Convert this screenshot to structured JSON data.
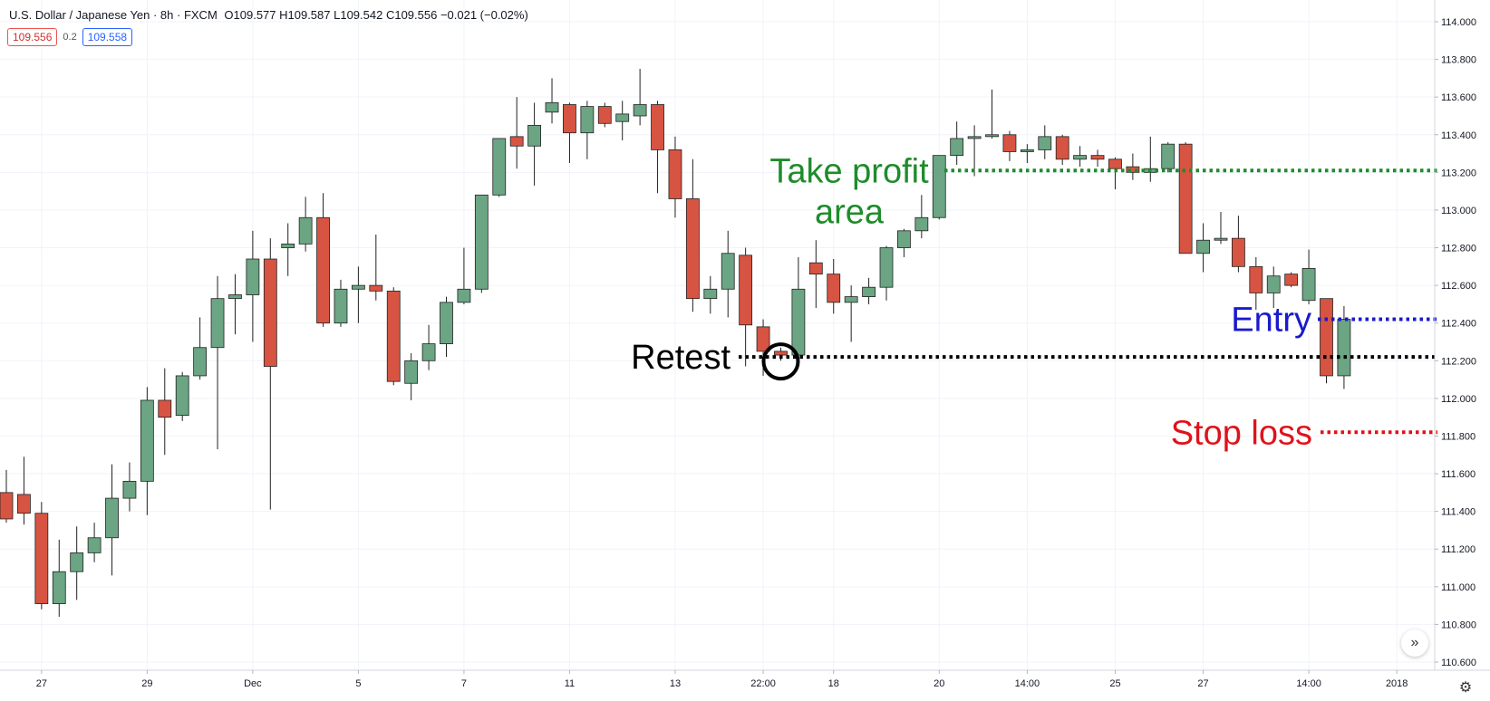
{
  "header": {
    "symbol": "U.S. Dollar / Japanese Yen · 8h · FXCM",
    "ohlc": "O109.577 H109.587 L109.542 C109.556 −0.021 (−0.02%)"
  },
  "quotes": {
    "sell": "109.556",
    "spread": "0.2",
    "buy": "109.558"
  },
  "icons": {
    "jump": "double-chevron-right-icon",
    "settings": "gear-icon"
  },
  "colors": {
    "up": "#6ba583",
    "down": "#d75442",
    "take_profit": "#1e8c2a",
    "entry": "#1a1acc",
    "stop": "#e0121b",
    "retest": "#000000"
  },
  "chart_data": {
    "type": "candlestick",
    "y_axis": {
      "min": 110.6,
      "max": 114.0,
      "ticks": [
        "114.000",
        "113.800",
        "113.600",
        "113.400",
        "113.200",
        "113.000",
        "112.800",
        "112.600",
        "112.400",
        "112.200",
        "112.000",
        "111.800",
        "111.600",
        "111.400",
        "111.200",
        "111.000",
        "110.800",
        "110.600"
      ]
    },
    "x_ticks": [
      {
        "label": "27",
        "bar": 2
      },
      {
        "label": "29",
        "bar": 8
      },
      {
        "label": "Dec",
        "bar": 14
      },
      {
        "label": "5",
        "bar": 20
      },
      {
        "label": "7",
        "bar": 26
      },
      {
        "label": "11",
        "bar": 32
      },
      {
        "label": "13",
        "bar": 38
      },
      {
        "label": "22:00",
        "bar": 43
      },
      {
        "label": "18",
        "bar": 47
      },
      {
        "label": "20",
        "bar": 53
      },
      {
        "label": "14:00",
        "bar": 58
      },
      {
        "label": "25",
        "bar": 63
      },
      {
        "label": "27",
        "bar": 68
      },
      {
        "label": "14:00",
        "bar": 74
      },
      {
        "label": "2018",
        "bar": 79
      }
    ],
    "candles": [
      {
        "o": 111.5,
        "h": 111.62,
        "l": 111.34,
        "c": 111.36
      },
      {
        "o": 111.49,
        "h": 111.69,
        "l": 111.33,
        "c": 111.39
      },
      {
        "o": 111.39,
        "h": 111.45,
        "l": 110.88,
        "c": 110.91
      },
      {
        "o": 110.91,
        "h": 111.25,
        "l": 110.84,
        "c": 111.08
      },
      {
        "o": 111.08,
        "h": 111.32,
        "l": 110.93,
        "c": 111.18
      },
      {
        "o": 111.18,
        "h": 111.34,
        "l": 111.13,
        "c": 111.26
      },
      {
        "o": 111.26,
        "h": 111.65,
        "l": 111.06,
        "c": 111.47
      },
      {
        "o": 111.47,
        "h": 111.66,
        "l": 111.4,
        "c": 111.56
      },
      {
        "o": 111.56,
        "h": 112.06,
        "l": 111.38,
        "c": 111.99
      },
      {
        "o": 111.99,
        "h": 112.16,
        "l": 111.7,
        "c": 111.9
      },
      {
        "o": 111.91,
        "h": 112.14,
        "l": 111.88,
        "c": 112.12
      },
      {
        "o": 112.12,
        "h": 112.43,
        "l": 112.1,
        "c": 112.27
      },
      {
        "o": 112.27,
        "h": 112.65,
        "l": 111.73,
        "c": 112.53
      },
      {
        "o": 112.53,
        "h": 112.66,
        "l": 112.34,
        "c": 112.55
      },
      {
        "o": 112.55,
        "h": 112.89,
        "l": 112.3,
        "c": 112.74
      },
      {
        "o": 112.74,
        "h": 112.85,
        "l": 111.41,
        "c": 112.17
      },
      {
        "o": 112.8,
        "h": 112.93,
        "l": 112.65,
        "c": 112.82
      },
      {
        "o": 112.82,
        "h": 113.07,
        "l": 112.78,
        "c": 112.96
      },
      {
        "o": 112.96,
        "h": 113.09,
        "l": 112.38,
        "c": 112.4
      },
      {
        "o": 112.4,
        "h": 112.63,
        "l": 112.38,
        "c": 112.58
      },
      {
        "o": 112.58,
        "h": 112.7,
        "l": 112.4,
        "c": 112.6
      },
      {
        "o": 112.6,
        "h": 112.87,
        "l": 112.52,
        "c": 112.57
      },
      {
        "o": 112.57,
        "h": 112.59,
        "l": 112.07,
        "c": 112.09
      },
      {
        "o": 112.08,
        "h": 112.24,
        "l": 111.99,
        "c": 112.2
      },
      {
        "o": 112.2,
        "h": 112.39,
        "l": 112.15,
        "c": 112.29
      },
      {
        "o": 112.29,
        "h": 112.54,
        "l": 112.22,
        "c": 112.51
      },
      {
        "o": 112.51,
        "h": 112.8,
        "l": 112.5,
        "c": 112.58
      },
      {
        "o": 112.58,
        "h": 113.08,
        "l": 112.56,
        "c": 113.08
      },
      {
        "o": 113.08,
        "h": 113.38,
        "l": 113.07,
        "c": 113.38
      },
      {
        "o": 113.39,
        "h": 113.6,
        "l": 113.22,
        "c": 113.34
      },
      {
        "o": 113.34,
        "h": 113.57,
        "l": 113.13,
        "c": 113.45
      },
      {
        "o": 113.52,
        "h": 113.7,
        "l": 113.46,
        "c": 113.57
      },
      {
        "o": 113.56,
        "h": 113.57,
        "l": 113.25,
        "c": 113.41
      },
      {
        "o": 113.41,
        "h": 113.58,
        "l": 113.27,
        "c": 113.55
      },
      {
        "o": 113.55,
        "h": 113.57,
        "l": 113.44,
        "c": 113.46
      },
      {
        "o": 113.47,
        "h": 113.58,
        "l": 113.37,
        "c": 113.51
      },
      {
        "o": 113.5,
        "h": 113.75,
        "l": 113.45,
        "c": 113.56
      },
      {
        "o": 113.56,
        "h": 113.58,
        "l": 113.09,
        "c": 113.32
      },
      {
        "o": 113.32,
        "h": 113.39,
        "l": 112.96,
        "c": 113.06
      },
      {
        "o": 113.06,
        "h": 113.27,
        "l": 112.46,
        "c": 112.53
      },
      {
        "o": 112.53,
        "h": 112.65,
        "l": 112.45,
        "c": 112.58
      },
      {
        "o": 112.58,
        "h": 112.89,
        "l": 112.43,
        "c": 112.77
      },
      {
        "o": 112.76,
        "h": 112.8,
        "l": 112.17,
        "c": 112.39
      },
      {
        "o": 112.38,
        "h": 112.42,
        "l": 112.12,
        "c": 112.25
      },
      {
        "o": 112.25,
        "h": 112.27,
        "l": 112.2,
        "c": 112.23
      },
      {
        "o": 112.23,
        "h": 112.75,
        "l": 112.2,
        "c": 112.58
      },
      {
        "o": 112.72,
        "h": 112.84,
        "l": 112.48,
        "c": 112.66
      },
      {
        "o": 112.66,
        "h": 112.74,
        "l": 112.45,
        "c": 112.51
      },
      {
        "o": 112.51,
        "h": 112.6,
        "l": 112.3,
        "c": 112.54
      },
      {
        "o": 112.54,
        "h": 112.64,
        "l": 112.5,
        "c": 112.59
      },
      {
        "o": 112.59,
        "h": 112.81,
        "l": 112.52,
        "c": 112.8
      },
      {
        "o": 112.8,
        "h": 112.9,
        "l": 112.75,
        "c": 112.89
      },
      {
        "o": 112.89,
        "h": 113.08,
        "l": 112.85,
        "c": 112.96
      },
      {
        "o": 112.96,
        "h": 113.26,
        "l": 112.95,
        "c": 113.29
      },
      {
        "o": 113.29,
        "h": 113.47,
        "l": 113.24,
        "c": 113.38
      },
      {
        "o": 113.38,
        "h": 113.45,
        "l": 113.18,
        "c": 113.39
      },
      {
        "o": 113.39,
        "h": 113.64,
        "l": 113.38,
        "c": 113.4
      },
      {
        "o": 113.4,
        "h": 113.42,
        "l": 113.26,
        "c": 113.31
      },
      {
        "o": 113.31,
        "h": 113.35,
        "l": 113.25,
        "c": 113.32
      },
      {
        "o": 113.32,
        "h": 113.45,
        "l": 113.27,
        "c": 113.39
      },
      {
        "o": 113.39,
        "h": 113.4,
        "l": 113.24,
        "c": 113.27
      },
      {
        "o": 113.27,
        "h": 113.34,
        "l": 113.23,
        "c": 113.29
      },
      {
        "o": 113.29,
        "h": 113.32,
        "l": 113.23,
        "c": 113.27
      },
      {
        "o": 113.27,
        "h": 113.28,
        "l": 113.11,
        "c": 113.22
      },
      {
        "o": 113.23,
        "h": 113.3,
        "l": 113.16,
        "c": 113.2
      },
      {
        "o": 113.2,
        "h": 113.39,
        "l": 113.15,
        "c": 113.22
      },
      {
        "o": 113.22,
        "h": 113.36,
        "l": 113.2,
        "c": 113.35
      },
      {
        "o": 113.35,
        "h": 113.36,
        "l": 112.77,
        "c": 112.77
      },
      {
        "o": 112.77,
        "h": 112.93,
        "l": 112.67,
        "c": 112.84
      },
      {
        "o": 112.84,
        "h": 112.99,
        "l": 112.82,
        "c": 112.85
      },
      {
        "o": 112.85,
        "h": 112.97,
        "l": 112.67,
        "c": 112.7
      },
      {
        "o": 112.7,
        "h": 112.75,
        "l": 112.47,
        "c": 112.56
      },
      {
        "o": 112.56,
        "h": 112.7,
        "l": 112.48,
        "c": 112.65
      },
      {
        "o": 112.66,
        "h": 112.67,
        "l": 112.59,
        "c": 112.6
      },
      {
        "o": 112.52,
        "h": 112.79,
        "l": 112.5,
        "c": 112.69
      },
      {
        "o": 112.53,
        "h": 112.53,
        "l": 112.08,
        "c": 112.12
      },
      {
        "o": 112.12,
        "h": 112.49,
        "l": 112.05,
        "c": 112.42
      }
    ],
    "annotations": [
      {
        "label": "Take profit",
        "label2": "area",
        "level": 113.21,
        "color": "#1e8c2a"
      },
      {
        "label": "Entry",
        "level": 112.42,
        "color": "#1a1acc"
      },
      {
        "label": "Stop loss",
        "level": 111.82,
        "color": "#e0121b"
      },
      {
        "label": "Retest",
        "level": 112.22,
        "color": "#000000",
        "circle_bar": 44
      }
    ]
  }
}
